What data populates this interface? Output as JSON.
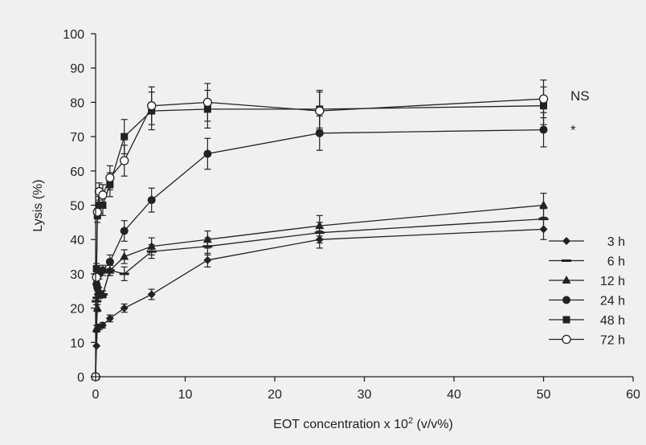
{
  "chart_data": {
    "type": "line",
    "title": "",
    "xlabel": "EOT concentration x 10",
    "xlabel_sup": "2",
    "xlabel_suffix": " (v/v%)",
    "ylabel": "Lysis (%)",
    "xlim": [
      0,
      60
    ],
    "ylim": [
      0,
      100
    ],
    "xticks": [
      0,
      10,
      20,
      30,
      40,
      50,
      60
    ],
    "yticks": [
      0,
      10,
      20,
      30,
      40,
      50,
      60,
      70,
      80,
      90,
      100
    ],
    "grid": false,
    "legend_position": "right",
    "colors": {
      "line": "#222222",
      "open_fill": "#ffffff",
      "background": "#f0f0f0"
    },
    "x": [
      0,
      0.1,
      0.2,
      0.4,
      0.8,
      1.6,
      3.2,
      6.25,
      12.5,
      25,
      50
    ],
    "series": [
      {
        "name": "3 h",
        "marker": "diamond",
        "y": [
          0,
          9,
          14,
          14.5,
          15,
          17,
          20,
          24,
          34,
          40,
          43
        ],
        "err": [
          0.5,
          0.5,
          0.8,
          0.8,
          0.8,
          1,
          1.2,
          1.5,
          2,
          2.5,
          3
        ]
      },
      {
        "name": "6 h",
        "marker": "dash",
        "y": [
          0,
          22,
          23,
          24,
          24,
          31,
          30,
          36.5,
          38,
          42,
          46
        ],
        "err": [
          0.5,
          1,
          1,
          1,
          1,
          1.5,
          2,
          2,
          2.5,
          3,
          3
        ]
      },
      {
        "name": "12 h",
        "marker": "triangle",
        "y": [
          0,
          14,
          20,
          25,
          24,
          31,
          35,
          38,
          40,
          44,
          50
        ],
        "err": [
          0.5,
          1,
          1,
          1,
          1,
          1.5,
          2,
          2.5,
          2.5,
          3,
          3.5
        ]
      },
      {
        "name": "24 h",
        "marker": "circle",
        "y": [
          0,
          27,
          26,
          30,
          31,
          33.5,
          42.5,
          51.5,
          65,
          71,
          72
        ],
        "err": [
          0.5,
          1,
          1,
          1.5,
          1.5,
          2,
          3,
          3.5,
          4.5,
          5,
          5
        ]
      },
      {
        "name": "48 h",
        "marker": "square",
        "y": [
          0,
          31.5,
          47,
          50,
          50,
          56,
          70,
          77.5,
          78,
          78,
          79
        ],
        "err": [
          0.5,
          1.5,
          2,
          2.5,
          3,
          3.5,
          5,
          5.5,
          5.5,
          5.5,
          5.5
        ]
      },
      {
        "name": "72 h",
        "marker": "open-circle",
        "y": [
          0,
          29,
          48,
          54,
          53,
          58,
          63,
          79,
          80,
          77.5,
          81
        ],
        "err": [
          0.5,
          1.5,
          2,
          2.5,
          3,
          3.5,
          4.5,
          5.5,
          5.5,
          5.5,
          5.5
        ]
      }
    ],
    "annotations": [
      {
        "text": "NS",
        "x": 53,
        "y": 82
      },
      {
        "text": "*",
        "x": 53,
        "y": 72
      }
    ]
  }
}
